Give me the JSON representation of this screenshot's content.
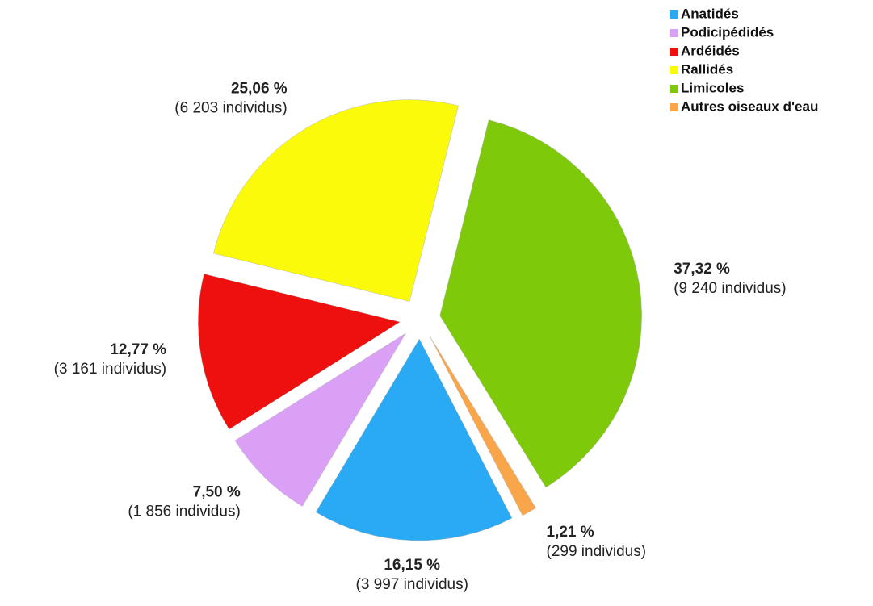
{
  "chart_data": {
    "type": "pie",
    "categories": [
      "Anatidés",
      "Podicipédidés",
      "Ardéidés",
      "Rallidés",
      "Limicoles",
      "Autres oiseaux d'eau"
    ],
    "values": [
      16.15,
      7.5,
      12.77,
      25.06,
      37.32,
      1.21
    ],
    "value_labels": [
      "16,15 %",
      "7,50 %",
      "12,77 %",
      "25,06 %",
      "37,32 %",
      "1,21 %"
    ],
    "counts": [
      3997,
      1856,
      3161,
      6203,
      9240,
      299
    ],
    "count_labels": [
      "(3 997 individus)",
      "(1 856 individus)",
      "(3 161 individus)",
      "(6 203 individus)",
      "(9 240 individus)",
      "(299 individus)"
    ],
    "colors": [
      "#2aa9f5",
      "#d9a0f5",
      "#ee0f0f",
      "#fafa0a",
      "#7dc90a",
      "#f9a64b"
    ],
    "legend": "top-right"
  }
}
